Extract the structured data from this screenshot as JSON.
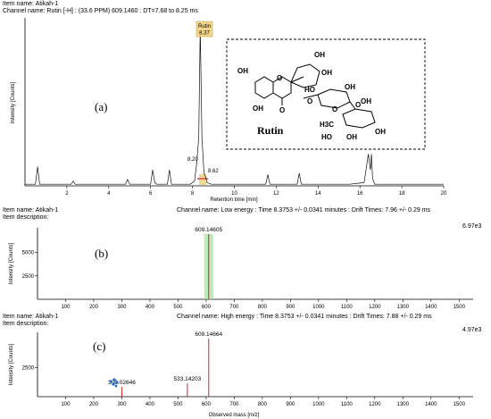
{
  "panel_a": {
    "item_name": "Item name: Atikah-1",
    "channel_name": "Channel name: Rutin [-H] : (33.6 PPM) 609.1460 : DT=7.68 to 8.25 ms",
    "panel_label": "(a)",
    "peak_label_name": "Rutin",
    "peak_label_rt": "8.37",
    "side_peak_left": "8.20",
    "side_peak_right": "8.62",
    "compound_name": "Rutin"
  },
  "panel_b": {
    "item_name": "Item name: Atikah-1",
    "item_description": "Item description:",
    "channel_name": "Channel name: Low energy : Time 8.3753 +/- 0.0341 minutes : Drift Times: 7.96 +/- 0.29 ms",
    "scale_max": "6.97e3",
    "panel_label": "(b)",
    "peak_label": "609.14605"
  },
  "panel_c": {
    "item_name": "Item name: Atikah-1",
    "item_description": "Item description:",
    "channel_name": "Channel name: High energy : Time 8.3753 +/- 0.0341 minutes : Drift Times: 7.88 +/- 0.29 ms",
    "scale_max": "4.97e3",
    "panel_label": "(c)",
    "peak_labels": [
      "609.14664",
      "533.14203",
      "300.02646"
    ]
  },
  "structure": {
    "atoms": [
      "OH",
      "OH",
      "HO",
      "O",
      "OH",
      "O",
      "O",
      "O",
      "HO",
      "O",
      "OH",
      "OH",
      "O",
      "H3C",
      "HO",
      "OH",
      "OH"
    ]
  },
  "chart_data": [
    {
      "type": "line",
      "title": "",
      "xlabel": "Retention time [min]",
      "ylabel": "Intensity [Counts]",
      "xlim": [
        0,
        20
      ],
      "xticks": [
        2,
        4,
        6,
        8,
        10,
        12,
        14,
        16,
        18,
        20
      ],
      "yticks": [],
      "grid": false,
      "series": [
        {
          "x": [
            0.0,
            0.5,
            0.6,
            0.7,
            0.8,
            1.5,
            2.2,
            2.3,
            2.4,
            3.0,
            4.0,
            4.8,
            4.9,
            5.0,
            5.5,
            6.0,
            6.1,
            6.2,
            6.3,
            6.8,
            6.9,
            7.0,
            7.5,
            7.9,
            8.1,
            8.2,
            8.3,
            8.37,
            8.45,
            8.55,
            8.62,
            8.7,
            8.9,
            9.5,
            10.5,
            11.5,
            11.6,
            11.7,
            12.5,
            13.0,
            13.1,
            13.2,
            14.0,
            14.5,
            15.5,
            16.2,
            16.4,
            16.5,
            16.55,
            16.6,
            16.7,
            17.0,
            18.0,
            18.5,
            19.0,
            20.0
          ],
          "y": [
            1,
            1,
            12,
            1,
            1,
            1,
            1,
            3,
            1,
            1,
            1,
            1,
            4,
            1,
            1,
            1,
            10,
            2,
            1,
            1,
            10,
            1,
            1,
            1,
            3,
            14,
            30,
            100,
            30,
            8,
            6,
            2,
            1,
            1,
            1,
            1,
            7,
            1,
            1,
            1,
            8,
            1,
            1,
            1,
            1,
            2,
            20,
            10,
            20,
            5,
            1,
            1,
            1,
            1,
            1,
            1
          ]
        }
      ],
      "annotations": [
        "Rutin 8.37",
        "8.20",
        "8.62"
      ]
    },
    {
      "type": "bar",
      "title": "",
      "xlabel": "",
      "ylabel": "Intensity [Counts]",
      "xlim": [
        0,
        1550
      ],
      "ylim": [
        0,
        6970
      ],
      "xticks": [
        100,
        200,
        300,
        400,
        500,
        600,
        700,
        800,
        900,
        1000,
        1100,
        1200,
        1300,
        1400,
        1500
      ],
      "yticks": [
        2500,
        5000
      ],
      "series": [
        {
          "x": [
            609.14605
          ],
          "values": [
            6970
          ]
        }
      ],
      "annotations": [
        "609.14605"
      ]
    },
    {
      "type": "bar",
      "title": "",
      "xlabel": "Observed mass [m/z]",
      "ylabel": "Intensity [Counts]",
      "xlim": [
        0,
        1550
      ],
      "ylim": [
        0,
        4970
      ],
      "xticks": [
        100,
        200,
        300,
        400,
        500,
        600,
        700,
        800,
        900,
        1000,
        1100,
        1200,
        1300,
        1400,
        1500
      ],
      "yticks": [
        2500
      ],
      "series": [
        {
          "x": [
            300.02646,
            533.14203,
            609.14664
          ],
          "values": [
            830,
            1150,
            4970
          ]
        }
      ],
      "annotations": [
        "609.14664",
        "533.14203",
        "300.02646"
      ]
    }
  ]
}
